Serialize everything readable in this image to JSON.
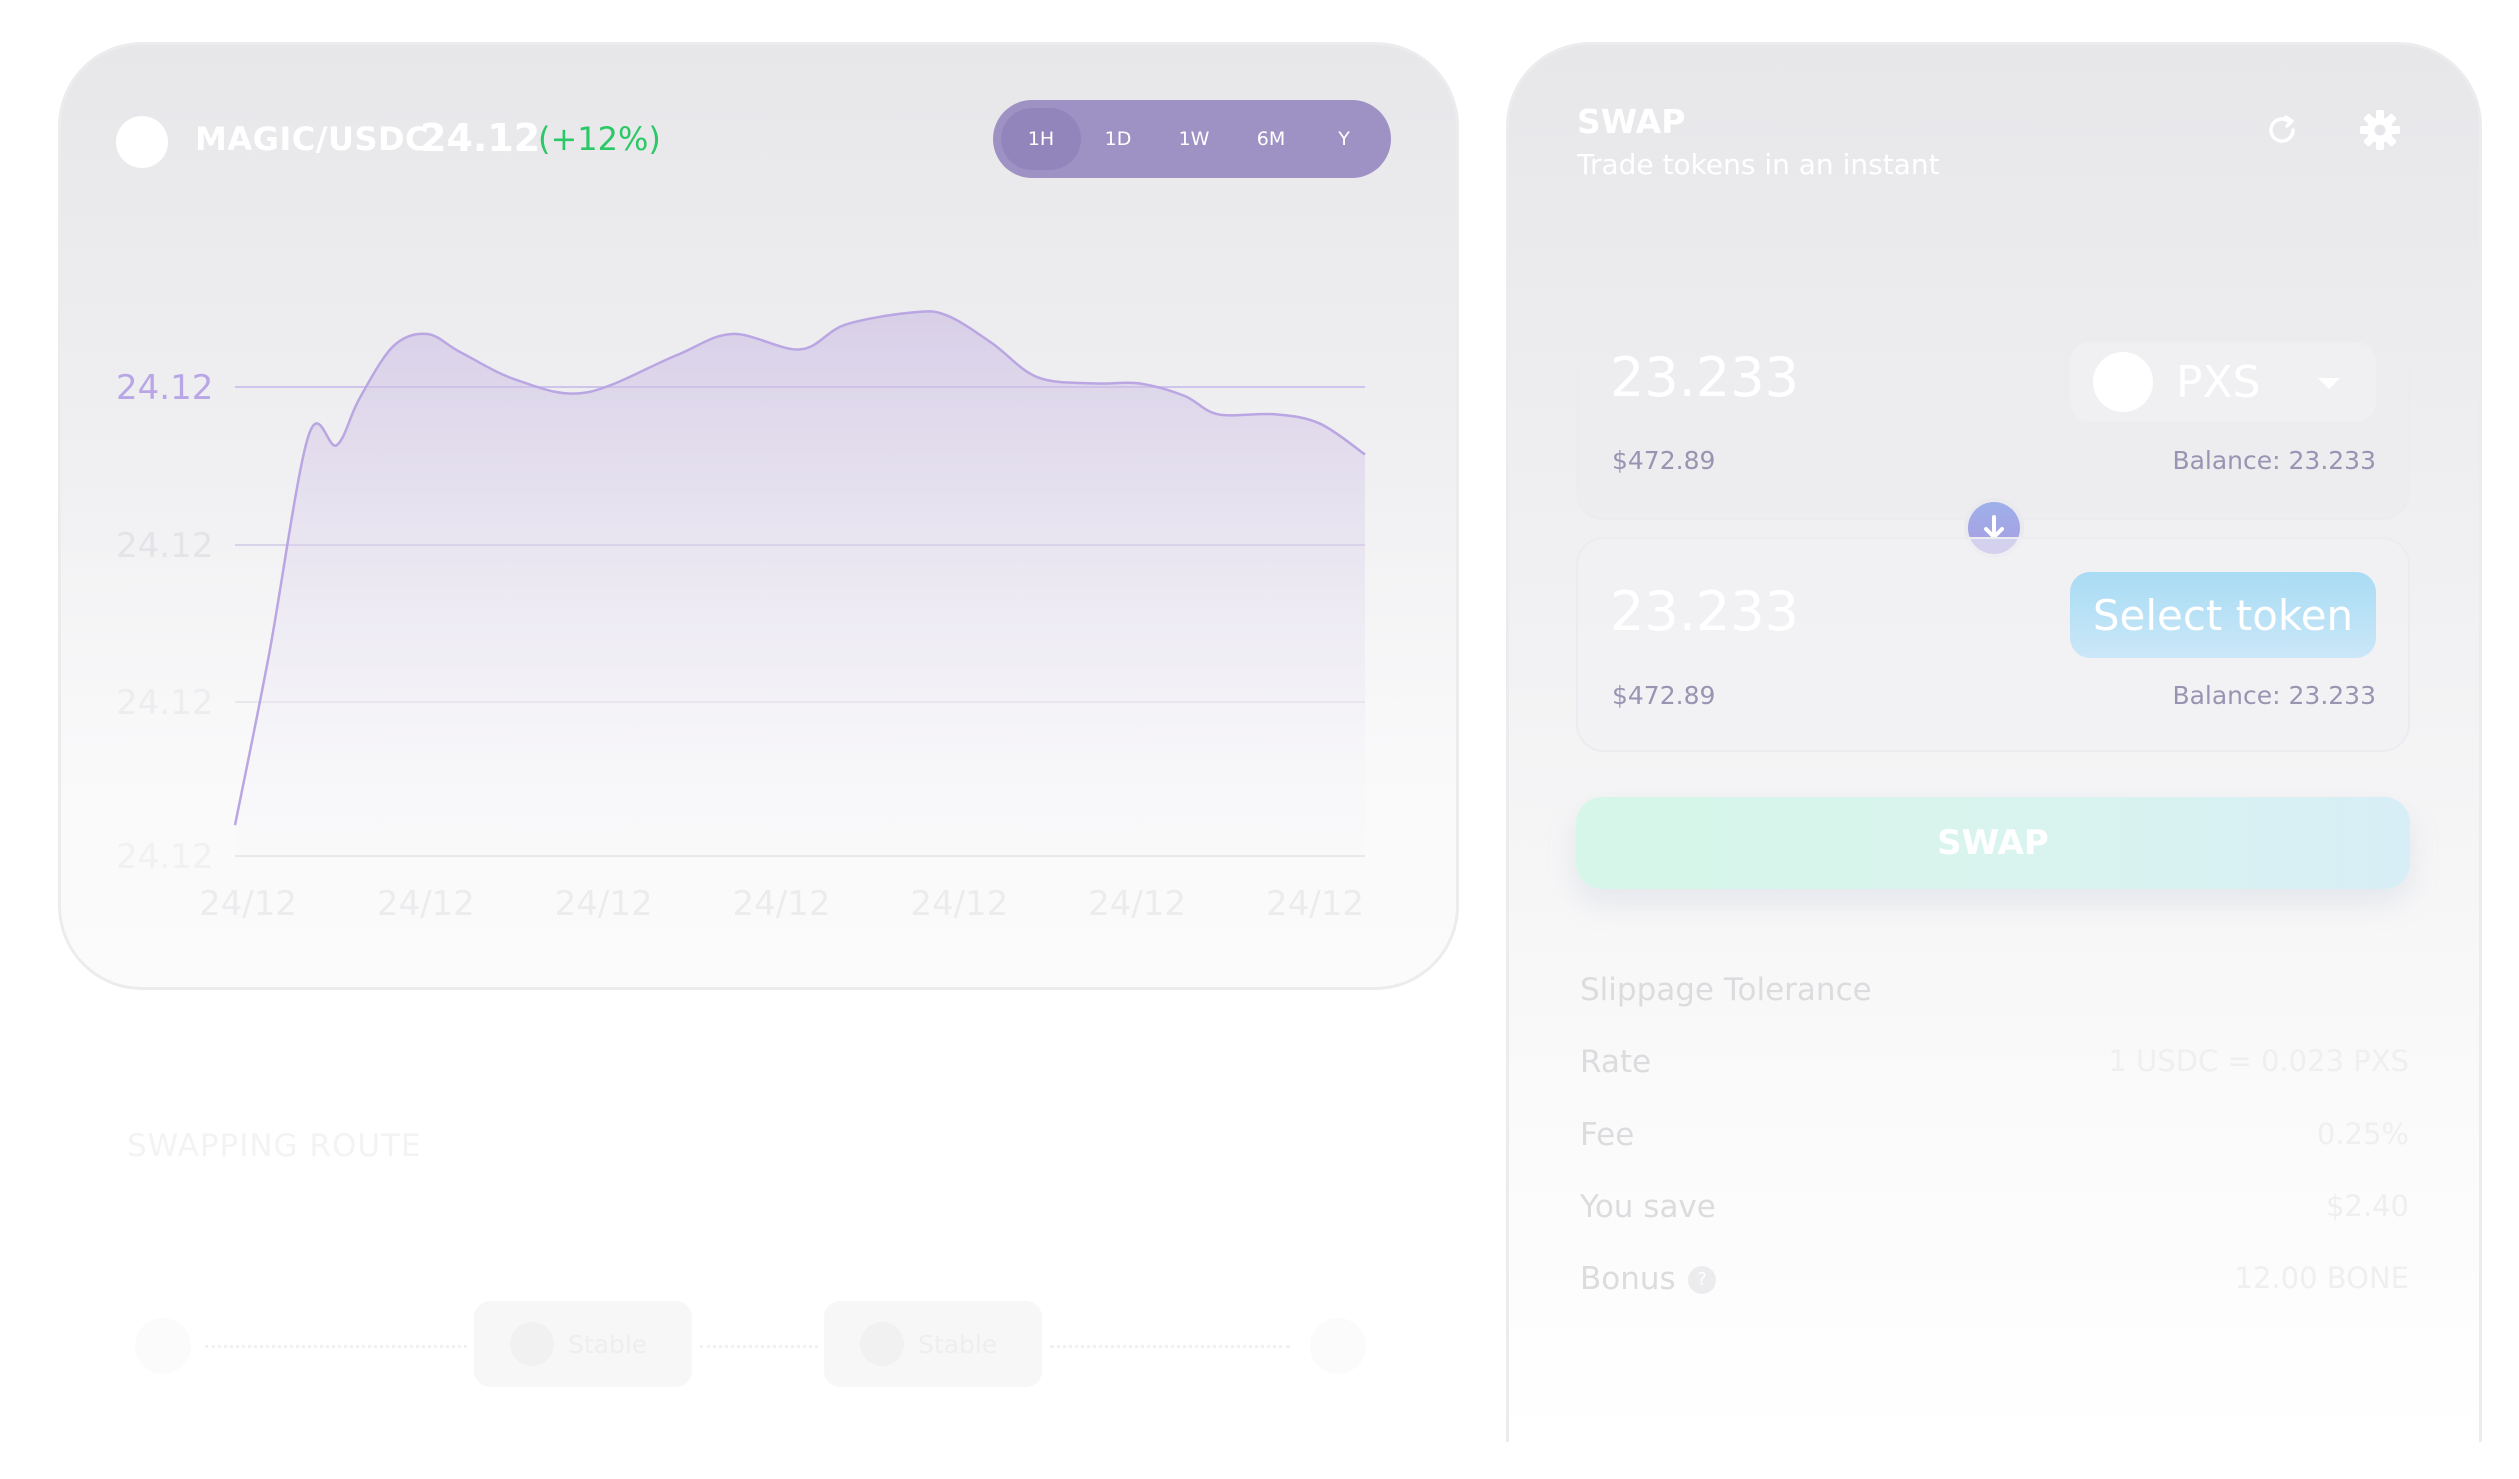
{
  "chart_panel": {
    "pair": "MAGIC/USDC",
    "price": "24.12",
    "change": "(+12%)",
    "ranges": [
      "1H",
      "1D",
      "1W",
      "6M",
      "Y"
    ],
    "active_range": "1H",
    "colors": {
      "accent": "#9e92c4",
      "positive": "#2cc867",
      "line": "#b9a6e2"
    }
  },
  "chart_data": {
    "type": "area",
    "y_tick_labels": [
      "24.12",
      "24.12",
      "24.12",
      "24.12"
    ],
    "x_tick_labels": [
      "24/12",
      "24/12",
      "24/12",
      "24/12",
      "24/12",
      "24/12",
      "24/12"
    ],
    "x": [
      0,
      0.03,
      0.065,
      0.09,
      0.11,
      0.14,
      0.17,
      0.2,
      0.25,
      0.31,
      0.39,
      0.44,
      0.5,
      0.54,
      0.6,
      0.63,
      0.67,
      0.71,
      0.76,
      0.8,
      0.84,
      0.87,
      0.92,
      0.96,
      1.0
    ],
    "values": [
      -5,
      0.5,
      7.6,
      7.3,
      8.8,
      10.5,
      10.9,
      10.3,
      9.4,
      9.0,
      10.2,
      10.9,
      10.4,
      11.2,
      11.6,
      11.5,
      10.6,
      9.5,
      9.3,
      9.3,
      8.9,
      8.3,
      8.3,
      8.0,
      7.0
    ],
    "y_axis_range": [
      -6,
      12
    ],
    "grid": true,
    "legend": "none"
  },
  "swap_panel": {
    "title": "SWAP",
    "subtitle": "Trade tokens in an instant",
    "from": {
      "amount": "23.233",
      "usd": "$472.89",
      "balance": "Balance: 23.233",
      "token": "PXS"
    },
    "to": {
      "amount": "23.233",
      "usd": "$472.89",
      "balance": "Balance: 23.233",
      "select_label": "Select token"
    },
    "swap_button": "SWAP",
    "details": [
      {
        "label": "Slippage Tolerance",
        "value": ""
      },
      {
        "label": "Rate",
        "value": "1 USDC = 0.023 PXS"
      },
      {
        "label": "Fee",
        "value": "0.25%"
      },
      {
        "label": "You save",
        "value": "$2.40"
      },
      {
        "label": "Bonus",
        "value": "12.00 BONE"
      }
    ],
    "help_glyph": "?"
  },
  "route": {
    "title": "SWAPPING ROUTE",
    "pills": [
      "Stable",
      "Stable"
    ]
  }
}
